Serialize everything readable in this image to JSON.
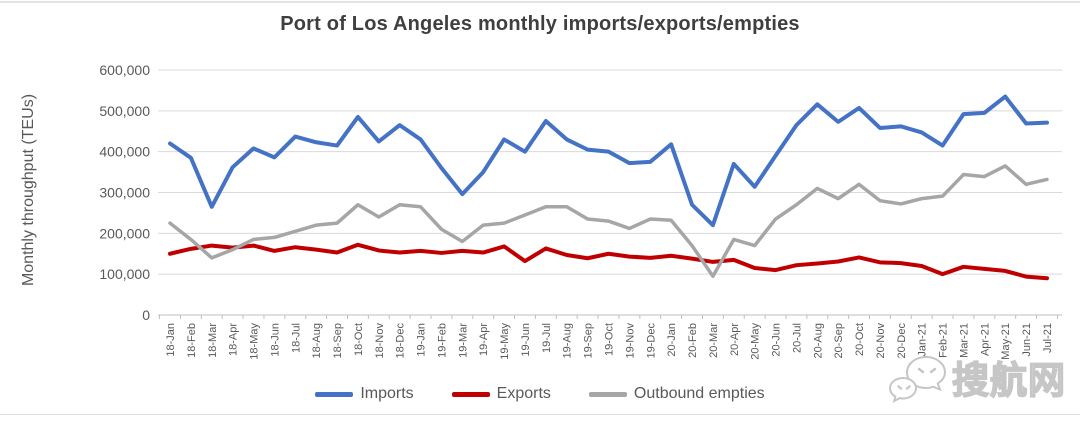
{
  "title": "Port of Los Angeles monthly imports/exports/empties",
  "ylabel": "Monthly throughput (TEUs)",
  "legend": {
    "imports": "Imports",
    "exports": "Exports",
    "empties": "Outbound empties"
  },
  "watermark": {
    "text": "搜航网",
    "icon": "wechat-chat-bubbles-icon"
  },
  "colors": {
    "imports": "#4472C4",
    "exports": "#C00000",
    "empties": "#A6A6A6",
    "grid": "#D9D9D9",
    "axis": "#BFBFBF",
    "title_text": "#3F3F3F",
    "tick_text": "#595959"
  },
  "chart_data": {
    "type": "line",
    "title": "Port of Los Angeles monthly imports/exports/empties",
    "xlabel": "",
    "ylabel": "Monthly throughput (TEUs)",
    "ylim": [
      0,
      600000
    ],
    "ytick_values": [
      0,
      100000,
      200000,
      300000,
      400000,
      500000,
      600000
    ],
    "ytick_labels": [
      "0",
      "100,000",
      "200,000",
      "300,000",
      "400,000",
      "500,000",
      "600,000"
    ],
    "grid": true,
    "legend_position": "bottom",
    "categories": [
      "18-Jan",
      "18-Feb",
      "18-Mar",
      "18-Apr",
      "18-May",
      "18-Jun",
      "18-Jul",
      "18-Aug",
      "18-Sep",
      "18-Oct",
      "18-Nov",
      "18-Dec",
      "19-Jan",
      "19-Feb",
      "19-Mar",
      "19-Apr",
      "19-May",
      "19-Jun",
      "19-Jul",
      "19-Aug",
      "19-Sep",
      "19-Oct",
      "19-Nov",
      "19-Dec",
      "20-Jan",
      "20-Feb",
      "20-Mar",
      "20-Apr",
      "20-May",
      "20-Jun",
      "20-Jul",
      "20-Aug",
      "20-Sep",
      "20-Oct",
      "20-Nov",
      "20-Dec",
      "Jan-21",
      "Feb-21",
      "Mar-21",
      "Apr-21",
      "May-21",
      "Jun-21",
      "Jul-21"
    ],
    "series": [
      {
        "name": "Imports",
        "color": "#4472C4",
        "values": [
          420000,
          385000,
          265000,
          362000,
          408000,
          386000,
          437000,
          423000,
          415000,
          485000,
          425000,
          465000,
          430000,
          360000,
          296000,
          350000,
          430000,
          400000,
          475000,
          430000,
          405000,
          400000,
          372000,
          375000,
          418000,
          270000,
          220000,
          370000,
          314000,
          390000,
          465000,
          516000,
          473000,
          507000,
          458000,
          462000,
          447000,
          415000,
          492000,
          495000,
          535000,
          469000,
          471000
        ]
      },
      {
        "name": "Exports",
        "color": "#C00000",
        "values": [
          150000,
          162000,
          170000,
          165000,
          170000,
          157000,
          166000,
          160000,
          153000,
          172000,
          158000,
          153000,
          157000,
          152000,
          157000,
          153000,
          168000,
          132000,
          163000,
          147000,
          139000,
          150000,
          143000,
          140000,
          145000,
          138000,
          130000,
          135000,
          115000,
          110000,
          122000,
          126000,
          131000,
          141000,
          129000,
          127000,
          120000,
          100000,
          118000,
          113000,
          108000,
          94000,
          90000
        ]
      },
      {
        "name": "Outbound empties",
        "color": "#A6A6A6",
        "values": [
          225000,
          185000,
          140000,
          160000,
          185000,
          190000,
          205000,
          220000,
          225000,
          270000,
          240000,
          270000,
          265000,
          210000,
          180000,
          220000,
          225000,
          245000,
          265000,
          265000,
          235000,
          230000,
          212000,
          235000,
          232000,
          170000,
          95000,
          185000,
          170000,
          235000,
          270000,
          310000,
          285000,
          320000,
          280000,
          272000,
          285000,
          291000,
          344000,
          339000,
          365000,
          320000,
          332000
        ]
      }
    ]
  }
}
